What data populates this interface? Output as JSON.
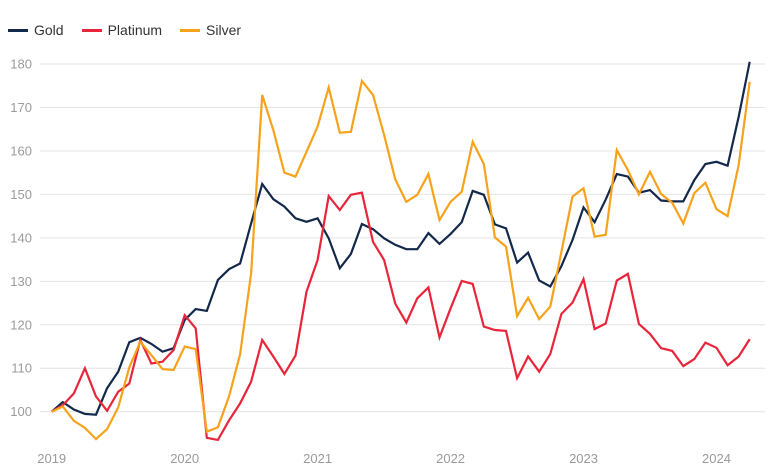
{
  "chart_data": {
    "type": "line",
    "title": "",
    "xlabel": "",
    "ylabel": "",
    "x_start": "2019-01",
    "x_end": "2024-04",
    "x_frequency": "monthly",
    "x_ticks": [
      "2019",
      "2020",
      "2021",
      "2022",
      "2023",
      "2024"
    ],
    "y_ticks": [
      100,
      110,
      120,
      130,
      140,
      150,
      160,
      170,
      180
    ],
    "ylim": [
      92,
      182
    ],
    "grid": "horizontal",
    "legend_placement": "top-left",
    "series": [
      {
        "name": "Gold",
        "color": "#13294b",
        "values": [
          100,
          102.2,
          100.5,
          99.5,
          99.3,
          105.4,
          109.2,
          116,
          117,
          115.6,
          113.8,
          114.6,
          121.1,
          123.6,
          123.2,
          130.3,
          132.8,
          134.1,
          143.3,
          152.4,
          148.9,
          147.2,
          144.5,
          143.7,
          144.5,
          139.9,
          133,
          136.3,
          143.2,
          142,
          139.9,
          138.4,
          137.4,
          137.4,
          141.1,
          138.6,
          140.9,
          143.6,
          150.8,
          149.9,
          143.1,
          142.2,
          134.3,
          136.6,
          130.2,
          128.8,
          133.5,
          139.5,
          147,
          143.6,
          148.8,
          154.7,
          154.1,
          150.4,
          151,
          148.6,
          148.4,
          148.4,
          153.3,
          157,
          157.5,
          156.6,
          167.9,
          180.5
        ]
      },
      {
        "name": "Platinum",
        "color": "#e8253a",
        "values": [
          100,
          101.5,
          104.2,
          110,
          103.5,
          100.2,
          104.6,
          106.5,
          116.5,
          111.1,
          111.5,
          114.2,
          122.2,
          119.2,
          94,
          93.5,
          98,
          101.9,
          106.9,
          116.5,
          112.7,
          108.7,
          112.9,
          127.6,
          134.9,
          149.6,
          146.4,
          149.9,
          150.4,
          139.1,
          134.9,
          124.9,
          120.5,
          126.1,
          128.6,
          117.1,
          123.8,
          130.1,
          129.4,
          119.6,
          118.8,
          118.6,
          107.7,
          112.7,
          109.2,
          113.3,
          122.5,
          125.1,
          130.5,
          119,
          120.3,
          130.2,
          131.7,
          120.2,
          117.9,
          114.6,
          114,
          110.5,
          112.1,
          115.9,
          114.7,
          110.7,
          112.7,
          116.7
        ]
      },
      {
        "name": "Silver",
        "color": "#f7a21b",
        "values": [
          100,
          101.2,
          97.9,
          96.3,
          93.7,
          96,
          101,
          110.2,
          116.1,
          113,
          109.8,
          109.6,
          115,
          114.4,
          95.4,
          96.4,
          103.5,
          113.2,
          131.8,
          172.9,
          164.8,
          155,
          154.1,
          159.8,
          165.6,
          174.6,
          164.2,
          164.4,
          176.1,
          172.9,
          163.7,
          153.5,
          148.3,
          149.9,
          154.7,
          144.1,
          148.3,
          150.6,
          162.1,
          157,
          140.1,
          138,
          122,
          126.2,
          121.3,
          124.2,
          136.8,
          149.5,
          151.4,
          140.3,
          140.7,
          160.2,
          155.6,
          150,
          155.2,
          150.1,
          148.1,
          143.3,
          150.3,
          152.7,
          146.6,
          145,
          156.8,
          175.9
        ]
      }
    ]
  }
}
